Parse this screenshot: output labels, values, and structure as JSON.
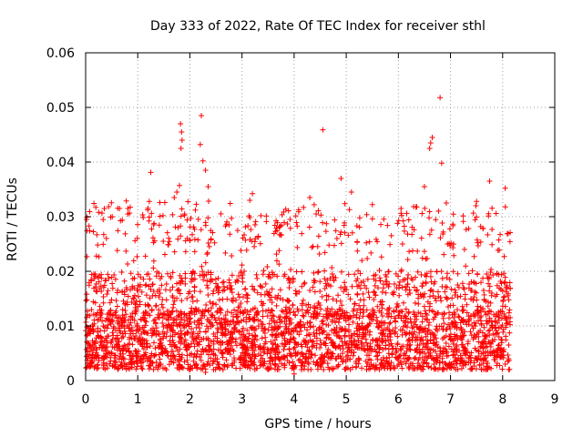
{
  "chart_data": {
    "type": "scatter",
    "title": "Day 333 of 2022, Rate Of TEC Index for receiver sthl",
    "xlabel": "GPS time / hours",
    "ylabel": "ROTI / TECUs",
    "xlim": [
      0,
      9
    ],
    "ylim": [
      0,
      0.06
    ],
    "x_ticks": [
      "0",
      "1",
      "2",
      "3",
      "4",
      "5",
      "6",
      "7",
      "8",
      "9"
    ],
    "y_ticks": [
      "0",
      "0.01",
      "0.02",
      "0.03",
      "0.04",
      "0.05",
      "0.06"
    ],
    "grid": true,
    "marker": "+",
    "color": "#ff0000",
    "series": [
      {
        "name": "sthl",
        "x_range": [
          0.0,
          8.15
        ],
        "typical_range": [
          0.002,
          0.025
        ],
        "notable_points": [
          {
            "x": 1.82,
            "y": 0.047
          },
          {
            "x": 1.84,
            "y": 0.0455
          },
          {
            "x": 1.85,
            "y": 0.044
          },
          {
            "x": 1.83,
            "y": 0.0425
          },
          {
            "x": 2.22,
            "y": 0.0485
          },
          {
            "x": 2.2,
            "y": 0.0432
          },
          {
            "x": 2.25,
            "y": 0.0402
          },
          {
            "x": 2.3,
            "y": 0.0385
          },
          {
            "x": 4.55,
            "y": 0.0459
          },
          {
            "x": 6.62,
            "y": 0.0435
          },
          {
            "x": 6.65,
            "y": 0.0445
          },
          {
            "x": 6.6,
            "y": 0.0425
          },
          {
            "x": 6.8,
            "y": 0.0518
          },
          {
            "x": 6.83,
            "y": 0.0398
          },
          {
            "x": 1.25,
            "y": 0.0381
          },
          {
            "x": 1.75,
            "y": 0.0345
          },
          {
            "x": 1.8,
            "y": 0.0357
          },
          {
            "x": 2.35,
            "y": 0.0355
          },
          {
            "x": 4.9,
            "y": 0.037
          },
          {
            "x": 7.75,
            "y": 0.0365
          },
          {
            "x": 8.05,
            "y": 0.0352
          },
          {
            "x": 6.5,
            "y": 0.0355
          },
          {
            "x": 3.2,
            "y": 0.0342
          },
          {
            "x": 5.1,
            "y": 0.0345
          },
          {
            "x": 0.65,
            "y": 0.0315
          },
          {
            "x": 1.7,
            "y": 0.0335
          },
          {
            "x": 3.15,
            "y": 0.033
          },
          {
            "x": 4.3,
            "y": 0.0335
          },
          {
            "x": 6.92,
            "y": 0.0325
          },
          {
            "x": 7.5,
            "y": 0.0328
          },
          {
            "x": 0.02,
            "y": 0.0295
          },
          {
            "x": 0.25,
            "y": 0.0308
          },
          {
            "x": 5.5,
            "y": 0.0322
          },
          {
            "x": 4.0,
            "y": 0.0012
          },
          {
            "x": 2.3,
            "y": 0.0015
          },
          {
            "x": 3.5,
            "y": 0.002
          }
        ]
      }
    ]
  }
}
